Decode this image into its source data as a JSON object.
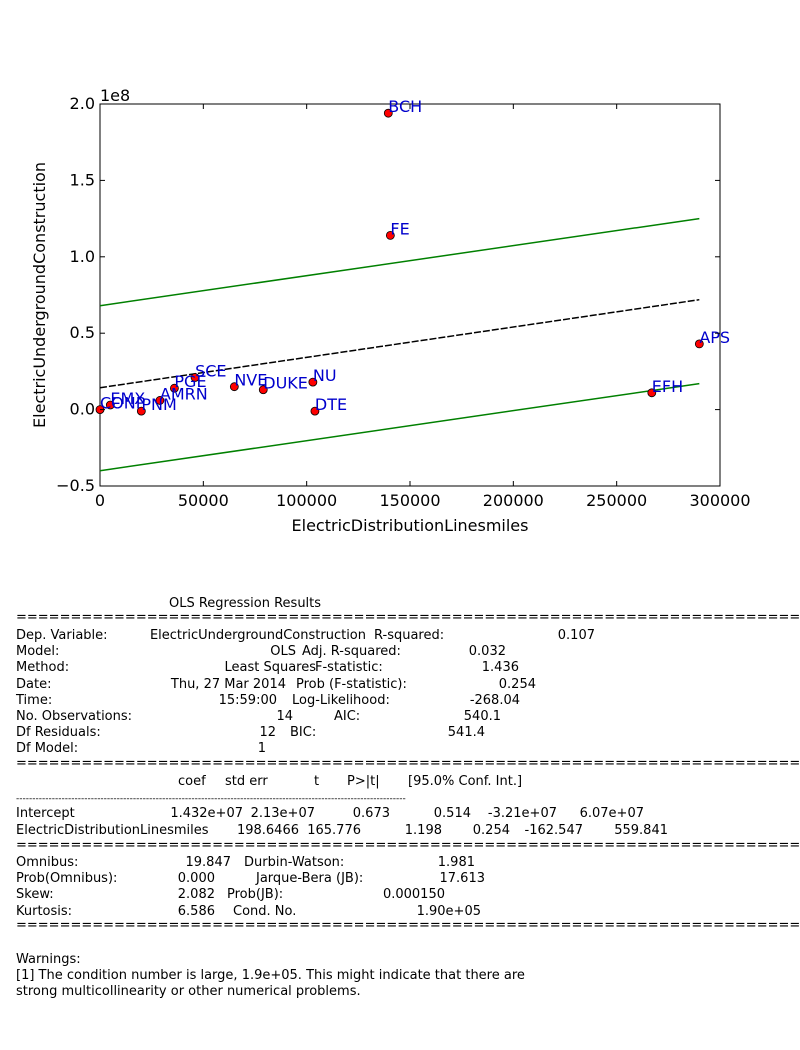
{
  "chart_data": {
    "type": "scatter",
    "xlabel": "ElectricDistributionLinesmiles",
    "ylabel": "ElectricUndergroundConstruction",
    "y_offset_label": "1e8",
    "xlim": [
      0,
      300000
    ],
    "ylim": [
      -0.5,
      2.0
    ],
    "x_ticks": [
      0,
      50000,
      100000,
      150000,
      200000,
      250000,
      300000
    ],
    "x_tick_labels": [
      "0",
      "50000",
      "100000",
      "150000",
      "200000",
      "250000",
      "300000"
    ],
    "y_ticks": [
      -0.5,
      0.0,
      0.5,
      1.0,
      1.5,
      2.0
    ],
    "y_tick_labels": [
      "−0.5",
      "0.0",
      "0.5",
      "1.0",
      "1.5",
      "2.0"
    ],
    "y_scale_note": "values in units of 1e8",
    "grid": false,
    "points": [
      {
        "label": "BCH",
        "x": 139500,
        "y": 1.94
      },
      {
        "label": "FE",
        "x": 140500,
        "y": 1.14
      },
      {
        "label": "APS",
        "x": 290000,
        "y": 0.43
      },
      {
        "label": "EFH",
        "x": 267000,
        "y": 0.11
      },
      {
        "label": "NU",
        "x": 103000,
        "y": 0.18
      },
      {
        "label": "DUKE",
        "x": 79000,
        "y": 0.13
      },
      {
        "label": "NVE",
        "x": 65000,
        "y": 0.15
      },
      {
        "label": "SCE",
        "x": 46000,
        "y": 0.21
      },
      {
        "label": "PGE",
        "x": 36000,
        "y": 0.14
      },
      {
        "label": "AMRN",
        "x": 29000,
        "y": 0.06
      },
      {
        "label": "EMX",
        "x": 5000,
        "y": 0.03
      },
      {
        "label": "CONP",
        "x": 0,
        "y": 0.0
      },
      {
        "label": "PNM",
        "x": 20000,
        "y": -0.01
      },
      {
        "label": "DTE",
        "x": 104000,
        "y": -0.01
      }
    ],
    "fit_line": {
      "x": [
        0,
        290000
      ],
      "y": [
        0.1432,
        0.7193
      ],
      "color": "#000000",
      "style": "dashed"
    },
    "prediction_upper": {
      "x": [
        0,
        290000
      ],
      "y": [
        0.68,
        1.25
      ],
      "color": "#008000"
    },
    "prediction_lower": {
      "x": [
        0,
        290000
      ],
      "y": [
        -0.4,
        0.17
      ],
      "color": "#008000"
    },
    "marker_color": "#ff0000",
    "label_color": "#0000cc"
  },
  "summary": {
    "title": "OLS Regression Results",
    "header_rows": [
      [
        "Dep. Variable:",
        "ElectricUndergroundConstruction",
        "R-squared:",
        "0.107"
      ],
      [
        "Model:",
        "OLS",
        "Adj. R-squared:",
        "0.032"
      ],
      [
        "Method:",
        "Least Squares",
        "F-statistic:",
        "1.436"
      ],
      [
        "Date:",
        "Thu, 27 Mar 2014",
        "Prob (F-statistic):",
        "0.254"
      ],
      [
        "Time:",
        "15:59:00",
        "Log-Likelihood:",
        "-268.04"
      ],
      [
        "No. Observations:",
        "14",
        "AIC:",
        "540.1"
      ],
      [
        "Df Residuals:",
        "12",
        "BIC:",
        "541.4"
      ],
      [
        "Df Model:",
        "1",
        "",
        ""
      ]
    ],
    "coef_header": [
      "coef",
      "std err",
      "t",
      "P>|t|",
      "[95.0% Conf. Int.]"
    ],
    "coef_rows": [
      [
        "Intercept",
        "1.432e+07",
        "2.13e+07",
        "0.673",
        "0.514",
        "-3.21e+07",
        "6.07e+07"
      ],
      [
        "ElectricDistributionLinesmiles",
        "198.6466",
        "165.776",
        "1.198",
        "0.254",
        "-162.547",
        "559.841"
      ]
    ],
    "diag_rows": [
      [
        "Omnibus:",
        "19.847",
        "Durbin-Watson:",
        "1.981"
      ],
      [
        "Prob(Omnibus):",
        "0.000",
        "Jarque-Bera (JB):",
        "17.613"
      ],
      [
        "Skew:",
        "2.082",
        "Prob(JB):",
        "0.000150"
      ],
      [
        "Kurtosis:",
        "6.586",
        "Cond. No.",
        "1.90e+05"
      ]
    ],
    "warnings_title": "Warnings:",
    "warning_lines": [
      "[1] The condition number is large, 1.9e+05. This might indicate that there are",
      "strong multicollinearity or other numerical problems."
    ]
  }
}
